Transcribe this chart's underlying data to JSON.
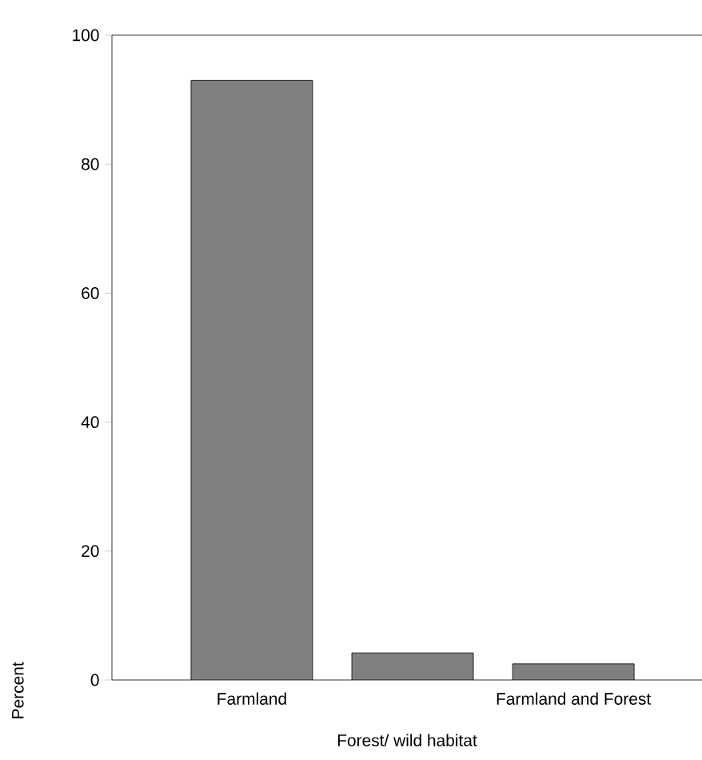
{
  "chart_data": {
    "type": "bar",
    "xlabel": "Forest/ wild habitat",
    "ylabel": "Percent",
    "categories": [
      "Farmland",
      null,
      "Farmland and Forest"
    ],
    "values": [
      93,
      4.2,
      2.5
    ],
    "color": "#808080",
    "ylim": [
      0,
      100
    ],
    "yticks": [
      0,
      20,
      40,
      60,
      80,
      100
    ]
  }
}
